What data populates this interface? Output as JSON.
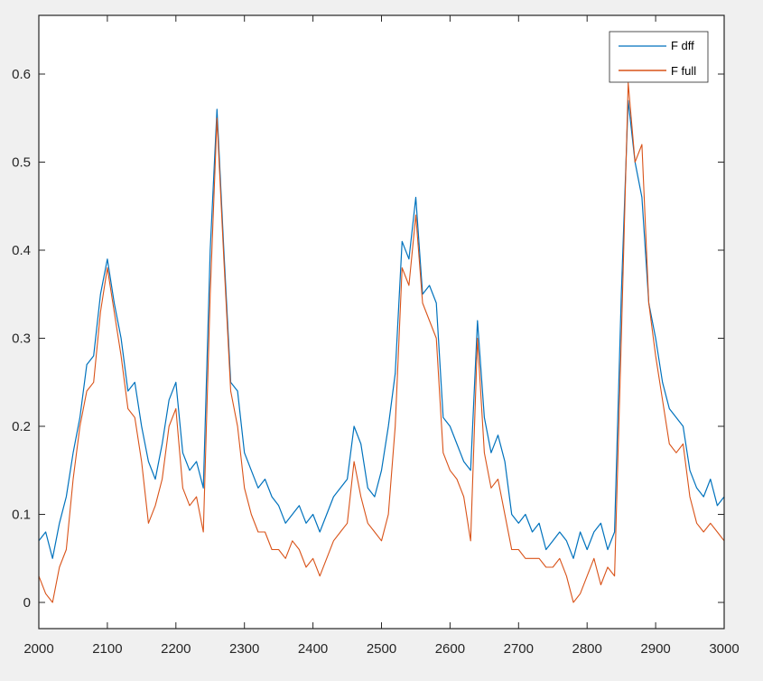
{
  "chart_data": {
    "type": "line",
    "title": "",
    "xlabel": "",
    "ylabel": "",
    "xlim": [
      2000,
      3000
    ],
    "ylim": [
      -0.03,
      0.65
    ],
    "grid": false,
    "legend_position": "top-right",
    "x_ticks": [
      2000,
      2100,
      2200,
      2300,
      2400,
      2500,
      2600,
      2700,
      2800,
      2900,
      3000
    ],
    "y_ticks": [
      0,
      0.1,
      0.2,
      0.3,
      0.4,
      0.5,
      0.6
    ],
    "y_tick_labels": [
      "0",
      "0.1",
      "0.2",
      "0.3",
      "0.4",
      "0.5",
      "0.6"
    ],
    "x": [
      2000,
      2010,
      2020,
      2030,
      2040,
      2050,
      2060,
      2070,
      2080,
      2090,
      2100,
      2110,
      2120,
      2130,
      2140,
      2150,
      2160,
      2170,
      2180,
      2190,
      2200,
      2210,
      2220,
      2230,
      2240,
      2250,
      2260,
      2270,
      2280,
      2290,
      2300,
      2310,
      2320,
      2330,
      2340,
      2350,
      2360,
      2370,
      2380,
      2390,
      2400,
      2410,
      2420,
      2430,
      2440,
      2450,
      2460,
      2470,
      2480,
      2490,
      2500,
      2510,
      2520,
      2530,
      2540,
      2550,
      2560,
      2570,
      2580,
      2590,
      2600,
      2610,
      2620,
      2630,
      2640,
      2650,
      2660,
      2670,
      2680,
      2690,
      2700,
      2710,
      2720,
      2730,
      2740,
      2750,
      2760,
      2770,
      2780,
      2790,
      2800,
      2810,
      2820,
      2830,
      2840,
      2850,
      2860,
      2870,
      2880,
      2890,
      2900,
      2910,
      2920,
      2930,
      2940,
      2950,
      2960,
      2970,
      2980,
      2990,
      3000
    ],
    "series": [
      {
        "name": "F dff",
        "color": "#0072BD",
        "values": [
          0.07,
          0.08,
          0.05,
          0.09,
          0.12,
          0.17,
          0.21,
          0.27,
          0.28,
          0.35,
          0.39,
          0.34,
          0.3,
          0.24,
          0.25,
          0.2,
          0.16,
          0.14,
          0.18,
          0.23,
          0.25,
          0.17,
          0.15,
          0.16,
          0.13,
          0.4,
          0.56,
          0.4,
          0.25,
          0.24,
          0.17,
          0.15,
          0.13,
          0.14,
          0.12,
          0.11,
          0.09,
          0.1,
          0.11,
          0.09,
          0.1,
          0.08,
          0.1,
          0.12,
          0.13,
          0.14,
          0.2,
          0.18,
          0.13,
          0.12,
          0.15,
          0.2,
          0.26,
          0.41,
          0.39,
          0.46,
          0.35,
          0.36,
          0.34,
          0.21,
          0.2,
          0.18,
          0.16,
          0.15,
          0.32,
          0.21,
          0.17,
          0.19,
          0.16,
          0.1,
          0.09,
          0.1,
          0.08,
          0.09,
          0.06,
          0.07,
          0.08,
          0.07,
          0.05,
          0.08,
          0.06,
          0.08,
          0.09,
          0.06,
          0.08,
          0.35,
          0.57,
          0.5,
          0.46,
          0.34,
          0.3,
          0.25,
          0.22,
          0.21,
          0.2,
          0.15,
          0.13,
          0.12,
          0.14,
          0.11,
          0.12
        ]
      },
      {
        "name": "F full",
        "color": "#D95319",
        "values": [
          0.03,
          0.01,
          0.0,
          0.04,
          0.06,
          0.14,
          0.2,
          0.24,
          0.25,
          0.33,
          0.38,
          0.33,
          0.28,
          0.22,
          0.21,
          0.16,
          0.09,
          0.11,
          0.14,
          0.2,
          0.22,
          0.13,
          0.11,
          0.12,
          0.08,
          0.35,
          0.55,
          0.39,
          0.24,
          0.2,
          0.13,
          0.1,
          0.08,
          0.08,
          0.06,
          0.06,
          0.05,
          0.07,
          0.06,
          0.04,
          0.05,
          0.03,
          0.05,
          0.07,
          0.08,
          0.09,
          0.16,
          0.12,
          0.09,
          0.08,
          0.07,
          0.1,
          0.2,
          0.38,
          0.36,
          0.44,
          0.34,
          0.32,
          0.3,
          0.17,
          0.15,
          0.14,
          0.12,
          0.07,
          0.3,
          0.17,
          0.13,
          0.14,
          0.1,
          0.06,
          0.06,
          0.05,
          0.05,
          0.05,
          0.04,
          0.04,
          0.05,
          0.03,
          0.0,
          0.01,
          0.03,
          0.05,
          0.02,
          0.04,
          0.03,
          0.3,
          0.59,
          0.5,
          0.52,
          0.34,
          0.28,
          0.23,
          0.18,
          0.17,
          0.18,
          0.12,
          0.09,
          0.08,
          0.09,
          0.08,
          0.07
        ]
      }
    ]
  },
  "legend": {
    "items": [
      {
        "label": "F dff",
        "color": "#0072BD"
      },
      {
        "label": "F full",
        "color": "#D95319"
      }
    ]
  }
}
